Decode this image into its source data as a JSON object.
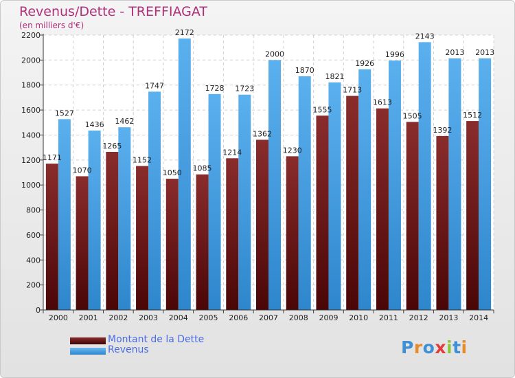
{
  "title": "Revenus/Dette - TREFFIAGAT",
  "subtitle": "(en milliers d'€)",
  "logo_text": "Proxiti",
  "chart_data": {
    "type": "bar",
    "categories": [
      "2000",
      "2001",
      "2002",
      "2003",
      "2004",
      "2005",
      "2006",
      "2007",
      "2008",
      "2009",
      "2010",
      "2011",
      "2012",
      "2013",
      "2014"
    ],
    "series": [
      {
        "name": "Montant de la Dette",
        "color": "#7a1c1c",
        "values": [
          1171,
          1070,
          1265,
          1152,
          1050,
          1085,
          1214,
          1362,
          1230,
          1555,
          1713,
          1613,
          1505,
          1392,
          1512
        ],
        "labels": [
          "1171",
          "1070",
          "1265",
          "1152",
          "1050",
          "1085",
          "1214",
          "1362",
          "1230",
          "1555",
          "1713",
          "1613",
          "1505",
          "1392",
          "1512"
        ]
      },
      {
        "name": "Revenus",
        "color": "#4aa5e8",
        "values": [
          1527,
          1436,
          1462,
          1747,
          2172,
          1728,
          1723,
          2000,
          1870,
          1821,
          1926,
          1996,
          2143,
          2013,
          2013
        ],
        "labels": [
          "1527",
          "1436",
          "1462",
          "1747",
          "2172",
          "1728",
          "1723",
          "2000",
          "1870",
          "1821",
          "1926",
          "1996",
          "2143",
          "2013",
          "2013"
        ]
      }
    ],
    "yticks": [
      "0",
      "200",
      "400",
      "600",
      "800",
      "1000",
      "1200",
      "1400",
      "1600",
      "1800",
      "2000",
      "2200"
    ],
    "ylim": [
      0,
      2200
    ],
    "grid": true,
    "legend": "bottom-left"
  }
}
